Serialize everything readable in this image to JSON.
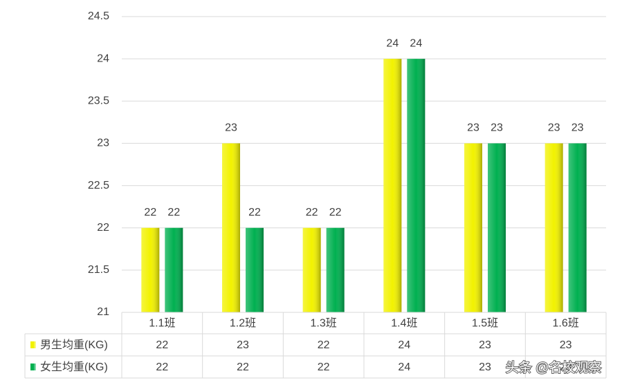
{
  "chart_data": {
    "type": "bar",
    "categories": [
      "1.1班",
      "1.2班",
      "1.3班",
      "1.4班",
      "1.5班",
      "1.6班"
    ],
    "series": [
      {
        "name": "男生均重(KG)",
        "color": "#f2f200",
        "values": [
          22,
          23,
          22,
          24,
          23,
          23
        ]
      },
      {
        "name": "女生均重(KG)",
        "color": "#00b050",
        "values": [
          22,
          22,
          22,
          24,
          23,
          23
        ]
      }
    ],
    "ylim": [
      21,
      24.5
    ],
    "yticks": [
      21,
      21.5,
      22,
      22.5,
      23,
      23.5,
      24,
      24.5
    ],
    "grid": true,
    "data_table": true
  },
  "watermark": "头条 @名校观察"
}
